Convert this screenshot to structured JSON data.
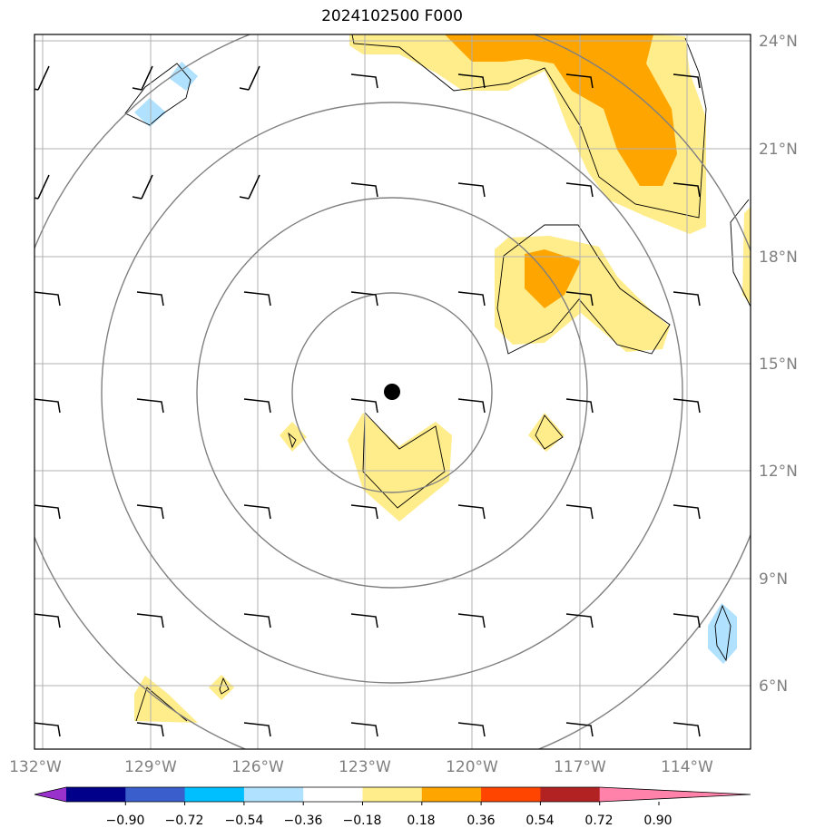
{
  "title": "2024102500 F000",
  "map": {
    "lon_ticks": [
      "132°W",
      "129°W",
      "126°W",
      "123°W",
      "120°W",
      "117°W",
      "114°W"
    ],
    "lat_ticks": [
      "24°N",
      "21°N",
      "18°N",
      "15°N",
      "12°N",
      "9°N",
      "6°N"
    ],
    "lon_range": [
      -132,
      -112
    ],
    "lat_range": [
      4.3,
      24.2
    ],
    "center": {
      "lon": -122.3,
      "lat": 14.2
    },
    "gridlines": true
  },
  "colorbar": {
    "levels": [
      "−0.90",
      "−0.72",
      "−0.54",
      "−0.36",
      "−0.18",
      "0.18",
      "0.36",
      "0.54",
      "0.72",
      "0.90"
    ],
    "colors": [
      "#9932cc",
      "#00008b",
      "#3a5fcd",
      "#00bfff",
      "#b0e2ff",
      "#ffffff",
      "#ffec8b",
      "#ffa500",
      "#ff4500",
      "#b22222",
      "#ff82ab"
    ]
  },
  "colors": {
    "frame": "#000000",
    "grid": "#b0b0b0",
    "range_rings": "#808080",
    "contour": "#000000",
    "center_marker": "#000000"
  }
}
